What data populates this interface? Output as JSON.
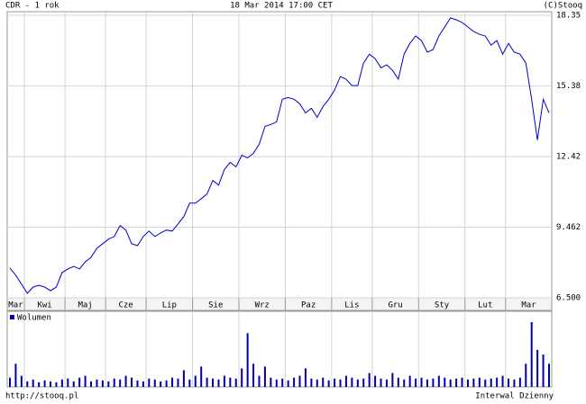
{
  "header": {
    "title": "CDR - 1 rok",
    "date": "18 Mar 2014 17:00 CET",
    "source": "(C)Stooq"
  },
  "footer": {
    "url": "http://stooq.pl",
    "interval": "Interwal Dzienny"
  },
  "chart_data": [
    {
      "type": "line",
      "color": "#0000cc",
      "categories": [
        "Mar",
        null,
        null,
        "Kwi",
        null,
        null,
        null,
        null,
        null,
        null,
        "Maj",
        null,
        null,
        null,
        null,
        null,
        null,
        "Cze",
        null,
        null,
        null,
        null,
        null,
        null,
        "Lip",
        null,
        null,
        null,
        null,
        null,
        null,
        null,
        "Sie",
        null,
        null,
        null,
        null,
        null,
        null,
        null,
        "Wrz",
        null,
        null,
        null,
        null,
        null,
        null,
        null,
        "Paz",
        null,
        null,
        null,
        null,
        null,
        null,
        null,
        "Lis",
        null,
        null,
        null,
        null,
        null,
        null,
        "Gru",
        null,
        null,
        null,
        null,
        null,
        null,
        null,
        "Sty",
        null,
        null,
        null,
        null,
        null,
        null,
        null,
        "Lut",
        null,
        null,
        null,
        null,
        null,
        null,
        "Mar",
        null,
        null,
        null,
        null,
        null,
        null,
        null
      ],
      "values": [
        7.75,
        7.45,
        7.07,
        6.69,
        6.95,
        7.03,
        6.95,
        6.8,
        6.95,
        7.56,
        7.71,
        7.82,
        7.71,
        8.01,
        8.2,
        8.58,
        8.77,
        8.96,
        9.07,
        9.53,
        9.34,
        8.77,
        8.69,
        9.07,
        9.3,
        9.07,
        9.22,
        9.34,
        9.3,
        9.6,
        9.91,
        10.47,
        10.47,
        10.66,
        10.85,
        11.42,
        11.23,
        11.88,
        12.18,
        11.99,
        12.48,
        12.37,
        12.56,
        12.94,
        13.69,
        13.77,
        13.88,
        14.83,
        14.9,
        14.83,
        14.64,
        14.26,
        14.45,
        14.07,
        14.52,
        14.83,
        15.21,
        15.78,
        15.67,
        15.4,
        15.4,
        16.34,
        16.72,
        16.53,
        16.15,
        16.27,
        16.04,
        15.67,
        16.72,
        17.17,
        17.48,
        17.29,
        16.8,
        16.91,
        17.48,
        17.86,
        18.24,
        18.16,
        18.05,
        17.86,
        17.67,
        17.55,
        17.48,
        17.1,
        17.29,
        16.72,
        17.17,
        16.8,
        16.72,
        16.34,
        14.83,
        13.12,
        14.83,
        14.26
      ],
      "ylim": [
        6.5,
        18.5
      ],
      "yticks": [
        18.35,
        15.38,
        12.42,
        9.462,
        {
          "value": 6.5,
          "label": "6.500"
        }
      ],
      "grid": true
    },
    {
      "type": "bar",
      "series": [
        {
          "name": "Wolumen",
          "color": "#0000aa",
          "values": [
            10,
            25,
            12,
            6,
            8,
            5,
            7,
            6,
            5,
            8,
            9,
            6,
            10,
            12,
            6,
            8,
            7,
            6,
            9,
            8,
            12,
            10,
            7,
            6,
            9,
            8,
            6,
            7,
            10,
            9,
            18,
            8,
            12,
            22,
            10,
            9,
            8,
            12,
            10,
            9,
            20,
            58,
            25,
            12,
            22,
            10,
            8,
            9,
            7,
            10,
            12,
            20,
            9,
            8,
            10,
            7,
            9,
            8,
            12,
            10,
            8,
            9,
            15,
            12,
            9,
            8,
            15,
            10,
            8,
            12,
            9,
            10,
            8,
            9,
            12,
            10,
            8,
            9,
            10,
            8,
            9,
            10,
            8,
            9,
            10,
            12,
            9,
            8,
            10,
            25,
            70,
            40,
            35,
            25
          ]
        }
      ]
    }
  ]
}
